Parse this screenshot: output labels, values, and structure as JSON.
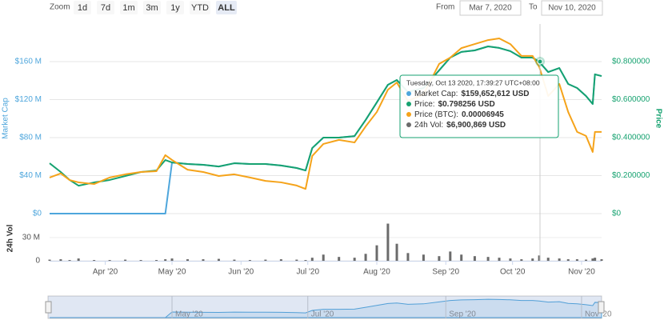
{
  "toolbar": {
    "zoom_label": "Zoom",
    "zoom_buttons": [
      "1d",
      "7d",
      "1m",
      "3m",
      "1y",
      "YTD",
      "ALL"
    ],
    "active_zoom": "ALL",
    "from_label": "From",
    "from_value": "Mar 7, 2020",
    "to_label": "To",
    "to_value": "Nov 10, 2020"
  },
  "tooltip": {
    "title": "Tuesday, Oct 13 2020, 17:39:27 UTC+08:00",
    "items": [
      {
        "label": "Market Cap:",
        "value": "$159,652,612 USD"
      },
      {
        "label": "Price:",
        "value": "$0.798256 USD"
      },
      {
        "label": "Price (BTC):",
        "value": "0.00006945"
      },
      {
        "label": "24h Vol:",
        "value": "$6,900,869 USD"
      }
    ]
  },
  "navigator": {
    "xticks": [
      {
        "value": "2020-05-01",
        "label": "May '20"
      },
      {
        "value": "2020-07-01",
        "label": "Jul '20"
      },
      {
        "value": "2020-09-01",
        "label": "Sep '20"
      },
      {
        "value": "2020-11-01",
        "label": "Nov '20"
      }
    ]
  },
  "chart_data": [
    {
      "type": "line",
      "x": [
        "2020-03-07",
        "2020-03-12",
        "2020-03-16",
        "2020-03-20",
        "2020-03-27",
        "2020-04-03",
        "2020-04-10",
        "2020-04-17",
        "2020-04-24",
        "2020-04-28",
        "2020-05-01",
        "2020-05-08",
        "2020-05-15",
        "2020-05-22",
        "2020-05-29",
        "2020-06-05",
        "2020-06-12",
        "2020-06-19",
        "2020-06-26",
        "2020-06-30",
        "2020-07-03",
        "2020-07-08",
        "2020-07-15",
        "2020-07-22",
        "2020-07-27",
        "2020-08-01",
        "2020-08-06",
        "2020-08-10",
        "2020-08-15",
        "2020-08-22",
        "2020-08-29",
        "2020-09-03",
        "2020-09-08",
        "2020-09-14",
        "2020-09-20",
        "2020-09-25",
        "2020-09-30",
        "2020-10-05",
        "2020-10-10",
        "2020-10-13",
        "2020-10-17",
        "2020-10-22",
        "2020-10-26",
        "2020-10-30",
        "2020-11-03",
        "2020-11-06",
        "2020-11-07",
        "2020-11-10"
      ],
      "xlim": [
        "2020-03-07",
        "2020-11-10"
      ],
      "series": [
        {
          "name": "Market Cap",
          "color": "#4ea6dc",
          "values": [
            0,
            0,
            0,
            0,
            0,
            0,
            0,
            0,
            0,
            0,
            53800000,
            52200000,
            51400000,
            49600000,
            53000000,
            52200000,
            52200000,
            50600000,
            48000000,
            45400000,
            69000000,
            80000000,
            80000000,
            81600000,
            98600000,
            117000000,
            135600000,
            140600000,
            128000000,
            132200000,
            150800000,
            164200000,
            170200000,
            171800000,
            176000000,
            174400000,
            171000000,
            164200000,
            164200000,
            159652612,
            149000000,
            153200000,
            136400000,
            132200000,
            123800000,
            115400000,
            146600000,
            144800000
          ]
        },
        {
          "name": "Price",
          "color": "#16a270",
          "axis": "y2",
          "values": [
            0.265,
            0.219,
            0.177,
            0.147,
            0.164,
            0.177,
            0.198,
            0.219,
            0.227,
            0.282,
            0.269,
            0.261,
            0.257,
            0.248,
            0.265,
            0.261,
            0.261,
            0.253,
            0.24,
            0.227,
            0.345,
            0.4,
            0.4,
            0.408,
            0.493,
            0.585,
            0.678,
            0.703,
            0.64,
            0.661,
            0.754,
            0.821,
            0.851,
            0.859,
            0.88,
            0.872,
            0.855,
            0.821,
            0.821,
            0.798256,
            0.745,
            0.766,
            0.682,
            0.661,
            0.619,
            0.577,
            0.733,
            0.724
          ]
        },
        {
          "color": "#f5a31a",
          "axis": "y3",
          "values": [
            1.71e-05,
            1.9e-05,
            1.59e-05,
            1.48e-05,
            1.4e-05,
            1.71e-05,
            1.86e-05,
            1.97e-05,
            2.01e-05,
            2.77e-05,
            2.54e-05,
            2.08e-05,
            1.97e-05,
            1.78e-05,
            1.86e-05,
            1.71e-05,
            1.55e-05,
            1.48e-05,
            1.33e-05,
            1.17e-05,
            2.73e-05,
            3.3e-05,
            3.49e-05,
            3.37e-05,
            4.13e-05,
            4.81e-05,
            5.87e-05,
            6.21e-05,
            5.34e-05,
            5.65e-05,
            7.09e-05,
            7.39e-05,
            7.84e-05,
            8.03e-05,
            8.22e-05,
            8.3e-05,
            8.03e-05,
            7.47e-05,
            7.47e-05,
            6.945e-05,
            5.57e-05,
            6.14e-05,
            4.81e-05,
            3.87e-05,
            3.68e-05,
            2.92e-05,
            3.87e-05,
            3.87e-05
          ]
        }
      ],
      "ylim": [
        0,
        200000000
      ],
      "yticks": [
        {
          "value": 0,
          "label": "$0"
        },
        {
          "value": 40000000,
          "label": "$40 M"
        },
        {
          "value": 80000000,
          "label": "$80 M"
        },
        {
          "value": 120000000,
          "label": "$120 M"
        },
        {
          "value": 160000000,
          "label": "$160 M"
        }
      ],
      "y2lim": [
        0,
        1.0
      ],
      "y2ticks": [
        {
          "value": 0,
          "label": "$0"
        },
        {
          "value": 0.2,
          "label": "$0.200000"
        },
        {
          "value": 0.4,
          "label": "$0.400000"
        },
        {
          "value": 0.6,
          "label": "$0.600000"
        },
        {
          "value": 0.8,
          "label": "$0.800000"
        }
      ],
      "y3lim": [
        0,
        9e-05
      ],
      "grid": true
    },
    {
      "type": "bar",
      "name": "24h Vol",
      "color": "#6b6b6b",
      "x": [
        "2020-03-07",
        "2020-03-12",
        "2020-03-16",
        "2020-03-20",
        "2020-03-27",
        "2020-04-03",
        "2020-04-10",
        "2020-04-17",
        "2020-04-24",
        "2020-04-28",
        "2020-05-01",
        "2020-05-08",
        "2020-05-15",
        "2020-05-22",
        "2020-05-29",
        "2020-06-05",
        "2020-06-12",
        "2020-06-19",
        "2020-06-26",
        "2020-06-30",
        "2020-07-03",
        "2020-07-08",
        "2020-07-15",
        "2020-07-22",
        "2020-07-27",
        "2020-08-01",
        "2020-08-06",
        "2020-08-10",
        "2020-08-15",
        "2020-08-22",
        "2020-08-29",
        "2020-09-03",
        "2020-09-08",
        "2020-09-14",
        "2020-09-20",
        "2020-09-25",
        "2020-09-30",
        "2020-10-05",
        "2020-10-10",
        "2020-10-13",
        "2020-10-17",
        "2020-10-22",
        "2020-10-26",
        "2020-10-30",
        "2020-11-03",
        "2020-11-06",
        "2020-11-07",
        "2020-11-10"
      ],
      "values": [
        1500000,
        2000000,
        1000000,
        3000000,
        1000000,
        1000000,
        1500000,
        1000000,
        1000000,
        2000000,
        3000000,
        2000000,
        2000000,
        2500000,
        1500000,
        1000000,
        1500000,
        2000000,
        1500000,
        1000000,
        4000000,
        8000000,
        5000000,
        4000000,
        9000000,
        20000000,
        48000000,
        22000000,
        10000000,
        8000000,
        6000000,
        12000000,
        8000000,
        6000000,
        5000000,
        4000000,
        3000000,
        2000000,
        3000000,
        6900869,
        4000000,
        3000000,
        2000000,
        2000000,
        1500000,
        3000000,
        4000000,
        2000000
      ],
      "xlim": [
        "2020-03-07",
        "2020-11-10"
      ],
      "xticks": [
        {
          "value": "2020-04-01",
          "label": "Apr '20"
        },
        {
          "value": "2020-05-01",
          "label": "May '20"
        },
        {
          "value": "2020-06-01",
          "label": "Jun '20"
        },
        {
          "value": "2020-07-01",
          "label": "Jul '20"
        },
        {
          "value": "2020-08-01",
          "label": "Aug '20"
        },
        {
          "value": "2020-09-01",
          "label": "Sep '20"
        },
        {
          "value": "2020-10-01",
          "label": "Oct '20"
        },
        {
          "value": "2020-11-01",
          "label": "Nov '20"
        }
      ],
      "ylim": [
        0,
        50000000
      ],
      "yticks": [
        0,
        {
          "value": 30000000,
          "label": "30 M"
        }
      ],
      "grid": true
    }
  ]
}
